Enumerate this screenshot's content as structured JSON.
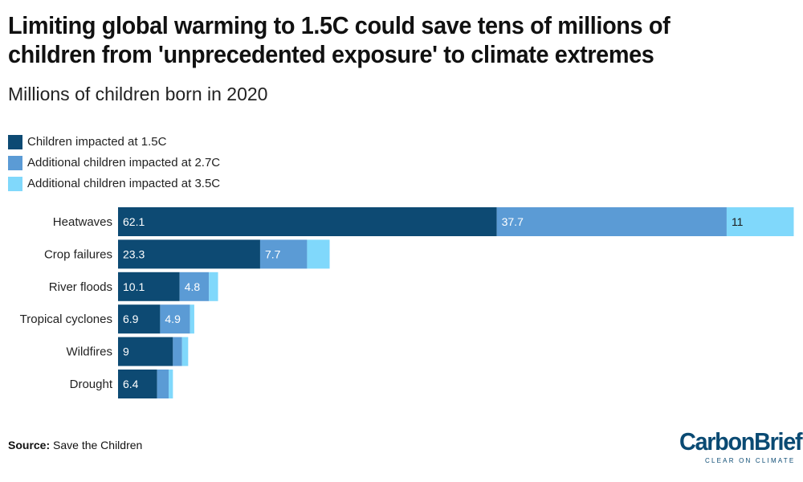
{
  "title": "Limiting global warming to 1.5C could save tens of millions of children from 'unprecedented exposure' to climate extremes",
  "subtitle": "Millions of children born in 2020",
  "legend": [
    {
      "label": "Children impacted at 1.5C",
      "color": "#0d4a73"
    },
    {
      "label": "Additional children impacted at 2.7C",
      "color": "#5b9bd5"
    },
    {
      "label": "Additional children impacted at 3.5C",
      "color": "#80d8fb"
    }
  ],
  "source": {
    "label": "Source:",
    "text": "Save the Children"
  },
  "logo": {
    "name": "CarbonBrief",
    "tagline": "CLEAR ON CLIMATE"
  },
  "chart_data": {
    "type": "bar",
    "orientation": "horizontal",
    "stacked": true,
    "categories": [
      "Heatwaves",
      "Crop failures",
      "River floods",
      "Tropical cyclones",
      "Wildfires",
      "Drought"
    ],
    "series": [
      {
        "name": "Children impacted at 1.5C",
        "color": "#0d4a73",
        "values": [
          62.1,
          23.3,
          10.1,
          6.9,
          9,
          6.4
        ],
        "labels": [
          "62.1",
          "23.3",
          "10.1",
          "6.9",
          "9",
          "6.4"
        ]
      },
      {
        "name": "Additional children impacted at 2.7C",
        "color": "#5b9bd5",
        "values": [
          37.7,
          7.7,
          4.8,
          4.9,
          1.5,
          1.9
        ],
        "labels": [
          "37.7",
          "7.7",
          "4.8",
          "4.9",
          "",
          ""
        ]
      },
      {
        "name": "Additional children impacted at 3.5C",
        "color": "#80d8fb",
        "values": [
          11,
          3.7,
          1.5,
          0.7,
          1,
          0.7
        ],
        "labels": [
          "11",
          "",
          "",
          "",
          "",
          ""
        ]
      }
    ],
    "xlim": [
      0,
      111
    ],
    "grid": false,
    "legend_position": "top-left"
  }
}
